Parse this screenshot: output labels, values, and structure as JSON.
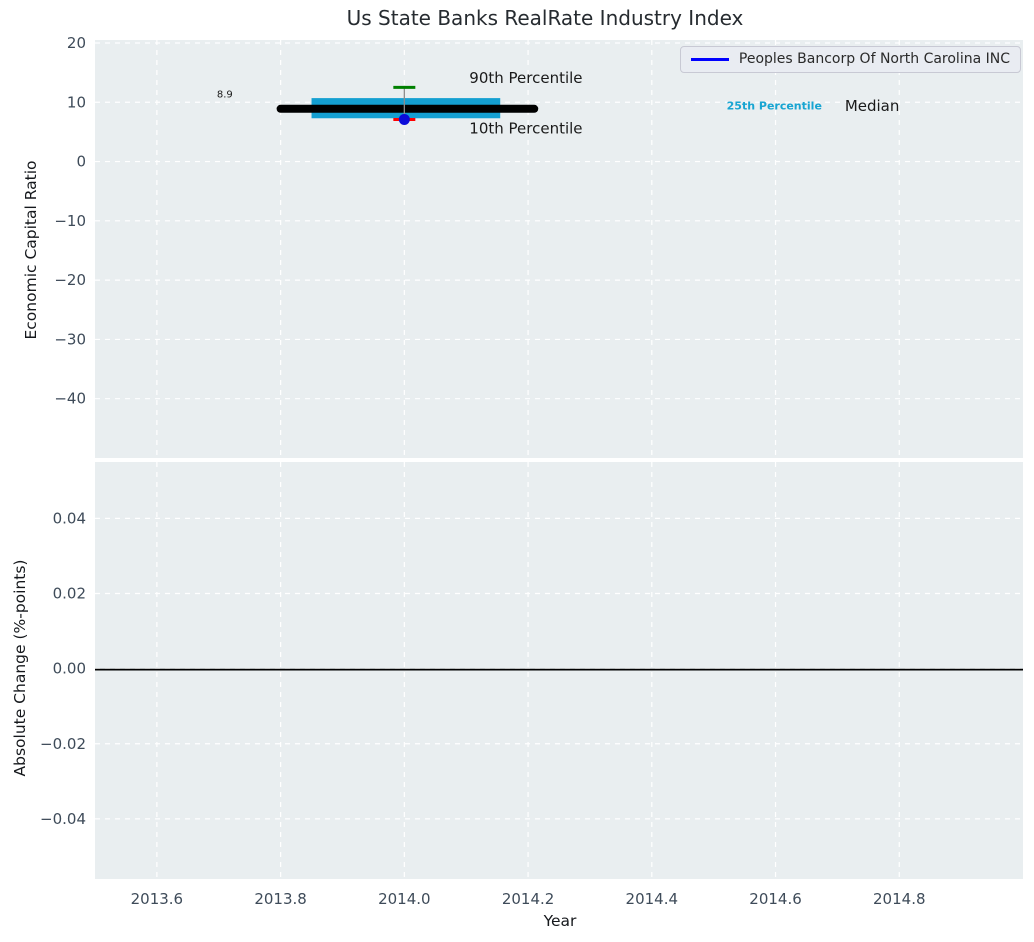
{
  "style": {
    "figure_bg": "#ffffff",
    "panel_bg": "#e9eef0",
    "grid_color": "#ffffff",
    "tick_label_color": "#3e4b59",
    "axis_label_color": "#15181c",
    "title_color": "#262b30"
  },
  "chart_data": {
    "type": "scatter",
    "subtype": "industry-percentile-index-with-change-panel",
    "title": "Us State Banks RealRate Industry Index",
    "x_axis": {
      "label": "Year",
      "lim": [
        2013.5,
        2015.0
      ],
      "ticks": [
        {
          "v": 2013.6,
          "label": "2013.6"
        },
        {
          "v": 2013.8,
          "label": "2013.8"
        },
        {
          "v": 2014.0,
          "label": "2014.0"
        },
        {
          "v": 2014.2,
          "label": "2014.2"
        },
        {
          "v": 2014.4,
          "label": "2014.4"
        },
        {
          "v": 2014.6,
          "label": "2014.6"
        },
        {
          "v": 2014.8,
          "label": "2014.8"
        }
      ]
    },
    "panels": [
      {
        "id": "economic-capital-ratio",
        "ylabel": "Economic Capital Ratio",
        "ylim": [
          -50,
          20.5
        ],
        "grid": true,
        "yticks": [
          {
            "v": 20,
            "label": "20"
          },
          {
            "v": 10,
            "label": "10"
          },
          {
            "v": 0,
            "label": "0"
          },
          {
            "v": -10,
            "label": "−10"
          },
          {
            "v": -20,
            "label": "−20"
          },
          {
            "v": -30,
            "label": "−30"
          },
          {
            "v": -40,
            "label": "−40"
          }
        ],
        "median": {
          "value": 8.9,
          "label": "8.9",
          "x_span": [
            2013.8,
            2014.21
          ],
          "color": "#000000"
        },
        "band_25_75": {
          "low": 7.3,
          "high": 10.7,
          "x_span": [
            2013.85,
            2014.155
          ],
          "color": "#149fd1"
        },
        "whisker": {
          "x": 2014.0,
          "p90": 12.5,
          "p10": 7.1,
          "line_color": "#8c8c8c",
          "p90_color": "#008000",
          "p10_color": "#ff0000"
        },
        "series": [
          {
            "name": "Peoples Bancorp Of North Carolina INC",
            "x": [
              2014.0
            ],
            "values": [
              7.1
            ],
            "color": "#0b0bd9",
            "marker": "circle"
          }
        ],
        "annotations": [
          {
            "id": "90th-percentile",
            "text": "90th Percentile",
            "x": 2014.105,
            "y": 14.1,
            "size": 15,
            "color": "#1a1a1a",
            "weight": "normal",
            "anchor": "start"
          },
          {
            "id": "10th-percentile",
            "text": "10th Percentile",
            "x": 2014.105,
            "y": 5.6,
            "size": 15,
            "color": "#1a1a1a",
            "weight": "normal",
            "anchor": "start"
          },
          {
            "id": "25th-percentile",
            "text": "25th Percentile",
            "x": 2014.521,
            "y": 9.4,
            "size": 11,
            "color": "#18a5d2",
            "weight": "bold",
            "anchor": "start"
          },
          {
            "id": "median",
            "text": "Median",
            "x": 2014.712,
            "y": 9.4,
            "size": 15,
            "color": "#1a1a1a",
            "weight": "normal",
            "anchor": "start"
          },
          {
            "id": "median-value",
            "text": "8.9",
            "x": 2013.697,
            "y": 11.4,
            "size": 10,
            "color": "#1a1a1a",
            "weight": "normal",
            "anchor": "start"
          }
        ],
        "legend": {
          "label": "Peoples Bancorp Of North Carolina INC",
          "line_color": "#0000ff",
          "position": "upper right"
        }
      },
      {
        "id": "absolute-change",
        "ylabel": "Absolute Change (%-points)",
        "ylim": [
          -0.056,
          0.055
        ],
        "grid": true,
        "yticks": [
          {
            "v": 0.04,
            "label": "0.04"
          },
          {
            "v": 0.02,
            "label": "0.02"
          },
          {
            "v": 0.0,
            "label": "0.00"
          },
          {
            "v": -0.02,
            "label": "−0.02"
          },
          {
            "v": -0.04,
            "label": "−0.04"
          }
        ],
        "zero_line": {
          "value": 0.0,
          "color": "#000000"
        }
      }
    ]
  }
}
